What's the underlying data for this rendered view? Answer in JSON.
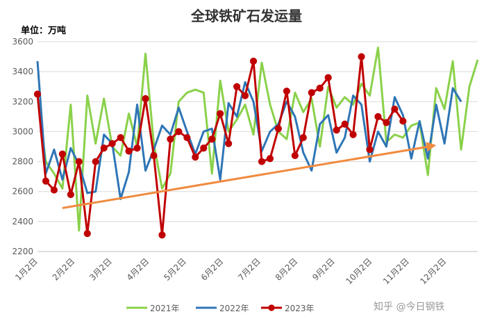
{
  "page": {
    "watermark": "知乎 @今日钢铁"
  },
  "chart_data": {
    "type": "line",
    "title": "全球铁矿石发运量",
    "unit_label": "单位：万吨",
    "xlabel": "",
    "ylabel": "",
    "ylim": [
      2200,
      3600
    ],
    "yticks": [
      2200,
      2400,
      2600,
      2800,
      3000,
      3200,
      3400,
      3600
    ],
    "x_tick_labels": [
      "1月2日",
      "2月2日",
      "3月2日",
      "4月2日",
      "5月2日",
      "6月2日",
      "7月2日",
      "8月2日",
      "9月2日",
      "10月2日",
      "11月2日",
      "12月2日"
    ],
    "grid": "horizontal",
    "legend_position": "bottom",
    "series": [
      {
        "name": "2021年",
        "color": "#8ad14a",
        "markers": false,
        "values": [
          3240,
          2800,
          2720,
          2620,
          3180,
          2340,
          3240,
          2920,
          3220,
          2900,
          2840,
          3120,
          2900,
          3520,
          2920,
          2620,
          2720,
          3200,
          3260,
          3280,
          3260,
          2720,
          3340,
          3000,
          3080,
          3180,
          2980,
          3460,
          3180,
          3000,
          2950,
          3260,
          3130,
          3220,
          2900,
          3300,
          3160,
          3230,
          3180,
          3320,
          3240,
          3560,
          2930,
          2980,
          2960,
          3040,
          3060,
          2710,
          3290,
          3150,
          3470,
          2880,
          3300,
          3480
        ]
      },
      {
        "name": "2022年",
        "color": "#2e75b6",
        "markers": false,
        "values": [
          3470,
          2720,
          2880,
          2680,
          2890,
          2780,
          2590,
          2600,
          2980,
          2920,
          2550,
          2730,
          3180,
          2740,
          2880,
          3040,
          2980,
          3160,
          3000,
          2850,
          3000,
          3020,
          2680,
          3190,
          3100,
          3330,
          3200,
          2870,
          3000,
          3050,
          3200,
          3100,
          2860,
          2740,
          3050,
          3110,
          2860,
          2960,
          3240,
          3180,
          2800,
          3000,
          2900,
          3230,
          3110,
          2820,
          3070,
          2820,
          3180,
          2920,
          3290,
          3200
        ]
      },
      {
        "name": "2023年",
        "color": "#c00000",
        "markers": true,
        "values": [
          3250,
          2670,
          2610,
          2850,
          2580,
          2800,
          2320,
          2800,
          2890,
          2920,
          2960,
          2870,
          2890,
          3220,
          2840,
          2310,
          2950,
          3000,
          2960,
          2830,
          2890,
          2950,
          3120,
          2920,
          3300,
          3240,
          3470,
          2800,
          2820,
          3020,
          3270,
          2840,
          2960,
          3260,
          3290,
          3360,
          3010,
          3050,
          2980,
          3500,
          2880,
          3100,
          3060,
          3150,
          3070
        ]
      }
    ],
    "annotations": [
      {
        "type": "trend-arrow",
        "color": "#f08a3e",
        "from": {
          "x_index": 3,
          "y": 2490
        },
        "to": {
          "x_index": 48,
          "y": 2910
        }
      }
    ]
  }
}
